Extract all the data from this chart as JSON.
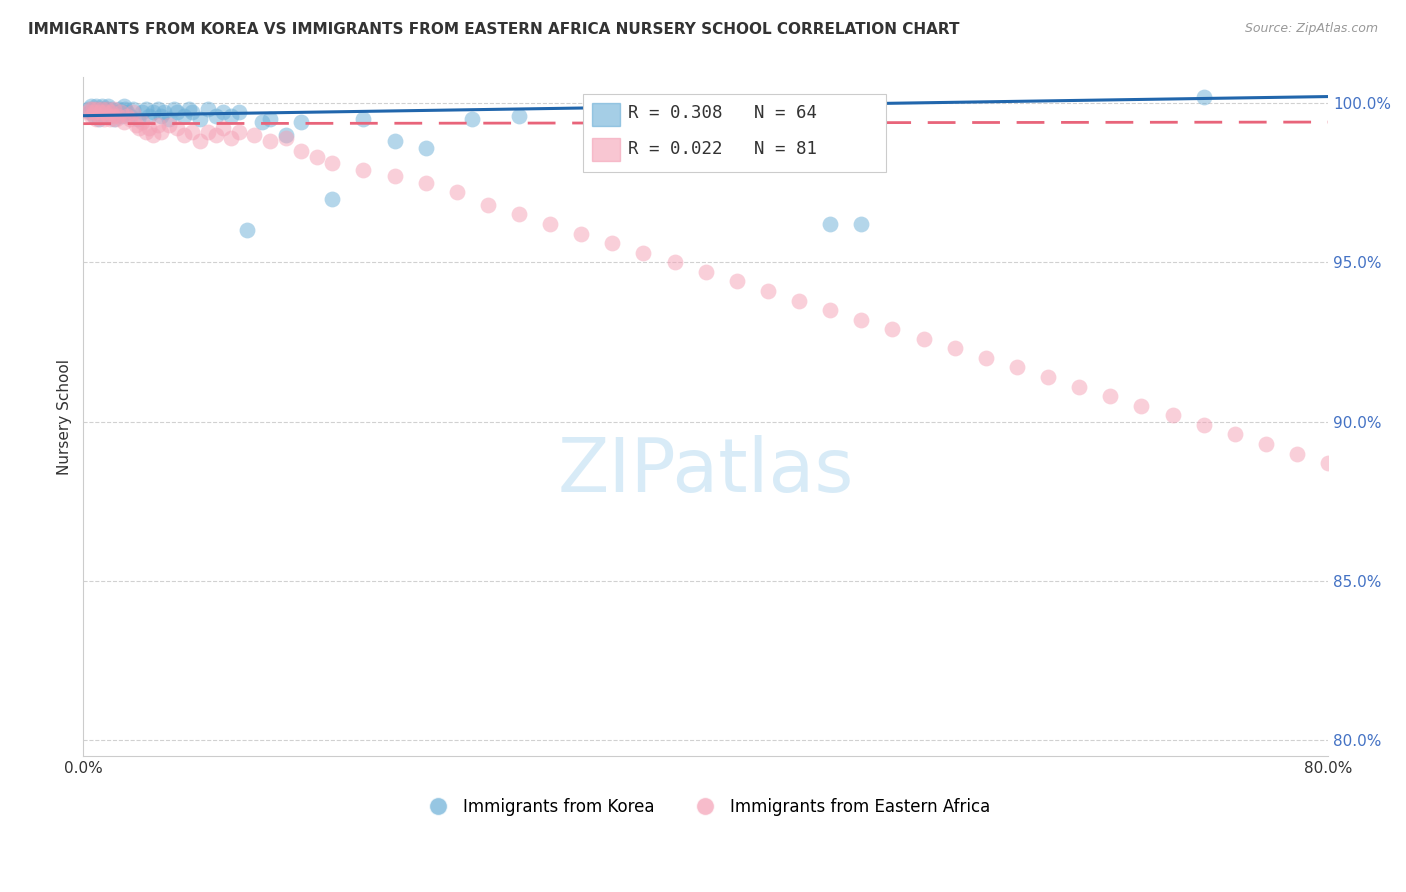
{
  "title": "IMMIGRANTS FROM KOREA VS IMMIGRANTS FROM EASTERN AFRICA NURSERY SCHOOL CORRELATION CHART",
  "source": "Source: ZipAtlas.com",
  "ylabel": "Nursery School",
  "xlim": [
    0.0,
    0.8
  ],
  "ylim": [
    0.795,
    1.008
  ],
  "yticks": [
    0.8,
    0.85,
    0.9,
    0.95,
    1.0
  ],
  "ytick_labels": [
    "80.0%",
    "85.0%",
    "90.0%",
    "95.0%",
    "100.0%"
  ],
  "xticks": [
    0.0,
    0.1,
    0.2,
    0.3,
    0.4,
    0.5,
    0.6,
    0.7,
    0.8
  ],
  "xtick_labels": [
    "0.0%",
    "",
    "",
    "",
    "",
    "",
    "",
    "",
    "80.0%"
  ],
  "korea_color": "#6aaed6",
  "eastern_africa_color": "#f4a0b5",
  "korea_R": 0.308,
  "korea_N": 64,
  "eastern_africa_R": 0.022,
  "eastern_africa_N": 81,
  "korea_line_color": "#2166ac",
  "eastern_africa_line_color": "#e8647a",
  "watermark": "ZIPatlas",
  "korea_x": [
    0.003,
    0.004,
    0.005,
    0.006,
    0.007,
    0.008,
    0.009,
    0.01,
    0.01,
    0.011,
    0.012,
    0.012,
    0.013,
    0.014,
    0.015,
    0.015,
    0.016,
    0.017,
    0.018,
    0.019,
    0.02,
    0.022,
    0.023,
    0.025,
    0.026,
    0.027,
    0.028,
    0.03,
    0.032,
    0.035,
    0.038,
    0.04,
    0.042,
    0.045,
    0.048,
    0.05,
    0.052,
    0.055,
    0.058,
    0.06,
    0.065,
    0.068,
    0.07,
    0.075,
    0.08,
    0.085,
    0.09,
    0.095,
    0.1,
    0.105,
    0.115,
    0.12,
    0.13,
    0.14,
    0.16,
    0.18,
    0.2,
    0.22,
    0.25,
    0.28,
    0.35,
    0.48,
    0.5,
    0.72
  ],
  "korea_y": [
    0.998,
    0.997,
    0.999,
    0.998,
    0.996,
    0.999,
    0.997,
    0.998,
    0.995,
    0.997,
    0.996,
    0.999,
    0.998,
    0.996,
    0.997,
    0.998,
    0.999,
    0.996,
    0.998,
    0.997,
    0.995,
    0.997,
    0.998,
    0.996,
    0.999,
    0.998,
    0.997,
    0.996,
    0.998,
    0.995,
    0.997,
    0.998,
    0.996,
    0.997,
    0.998,
    0.996,
    0.997,
    0.995,
    0.998,
    0.997,
    0.996,
    0.998,
    0.997,
    0.995,
    0.998,
    0.996,
    0.997,
    0.996,
    0.997,
    0.96,
    0.994,
    0.995,
    0.99,
    0.994,
    0.97,
    0.995,
    0.988,
    0.986,
    0.995,
    0.996,
    0.996,
    0.962,
    0.962,
    1.002
  ],
  "eastern_africa_x": [
    0.003,
    0.004,
    0.005,
    0.006,
    0.007,
    0.008,
    0.009,
    0.01,
    0.011,
    0.012,
    0.013,
    0.014,
    0.015,
    0.016,
    0.017,
    0.018,
    0.019,
    0.02,
    0.021,
    0.022,
    0.024,
    0.026,
    0.028,
    0.03,
    0.032,
    0.034,
    0.036,
    0.038,
    0.04,
    0.042,
    0.045,
    0.048,
    0.05,
    0.055,
    0.06,
    0.065,
    0.07,
    0.075,
    0.08,
    0.085,
    0.09,
    0.095,
    0.1,
    0.11,
    0.12,
    0.13,
    0.14,
    0.15,
    0.16,
    0.18,
    0.2,
    0.22,
    0.24,
    0.26,
    0.28,
    0.3,
    0.32,
    0.34,
    0.36,
    0.38,
    0.4,
    0.42,
    0.44,
    0.46,
    0.48,
    0.5,
    0.52,
    0.54,
    0.56,
    0.58,
    0.6,
    0.62,
    0.64,
    0.66,
    0.68,
    0.7,
    0.72,
    0.74,
    0.76,
    0.78,
    0.8
  ],
  "eastern_africa_y": [
    0.997,
    0.998,
    0.996,
    0.998,
    0.997,
    0.995,
    0.998,
    0.996,
    0.997,
    0.998,
    0.995,
    0.997,
    0.998,
    0.996,
    0.995,
    0.997,
    0.996,
    0.998,
    0.995,
    0.996,
    0.997,
    0.994,
    0.996,
    0.995,
    0.997,
    0.993,
    0.992,
    0.994,
    0.991,
    0.992,
    0.99,
    0.993,
    0.991,
    0.993,
    0.992,
    0.99,
    0.991,
    0.988,
    0.991,
    0.99,
    0.992,
    0.989,
    0.991,
    0.99,
    0.988,
    0.989,
    0.985,
    0.983,
    0.981,
    0.979,
    0.977,
    0.975,
    0.972,
    0.968,
    0.965,
    0.962,
    0.959,
    0.956,
    0.953,
    0.95,
    0.947,
    0.944,
    0.941,
    0.938,
    0.935,
    0.932,
    0.929,
    0.926,
    0.923,
    0.92,
    0.917,
    0.914,
    0.911,
    0.908,
    0.905,
    0.902,
    0.899,
    0.896,
    0.893,
    0.89,
    0.887
  ]
}
